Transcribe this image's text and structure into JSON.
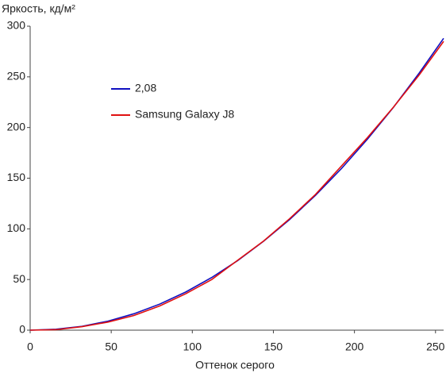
{
  "chart_data": {
    "type": "line",
    "title": "Яркость, кд/м²",
    "x_label": "Оттенок серого",
    "x": [
      0,
      16,
      32,
      48,
      64,
      80,
      96,
      112,
      128,
      144,
      160,
      176,
      192,
      208,
      224,
      240,
      255
    ],
    "series": [
      {
        "name": "2,08",
        "color": "#1010c0",
        "values": [
          0,
          0.9,
          3.8,
          8.9,
          16.2,
          25.8,
          37.7,
          52.0,
          68.7,
          87.8,
          109.2,
          133.1,
          159.5,
          188.5,
          219.8,
          253.9,
          288
        ]
      },
      {
        "name": "Samsung Galaxy J8",
        "color": "#e01010",
        "values": [
          0,
          0.5,
          3.5,
          8,
          14.5,
          24,
          36,
          50,
          69,
          88,
          110,
          134,
          162,
          190,
          220,
          252,
          285
        ]
      }
    ],
    "xlim": [
      0,
      255
    ],
    "xticks": [
      0,
      50,
      100,
      150,
      200,
      250
    ],
    "ylim": [
      0,
      300
    ],
    "yticks": [
      0,
      50,
      100,
      150,
      200,
      250,
      300
    ],
    "grid": false
  }
}
